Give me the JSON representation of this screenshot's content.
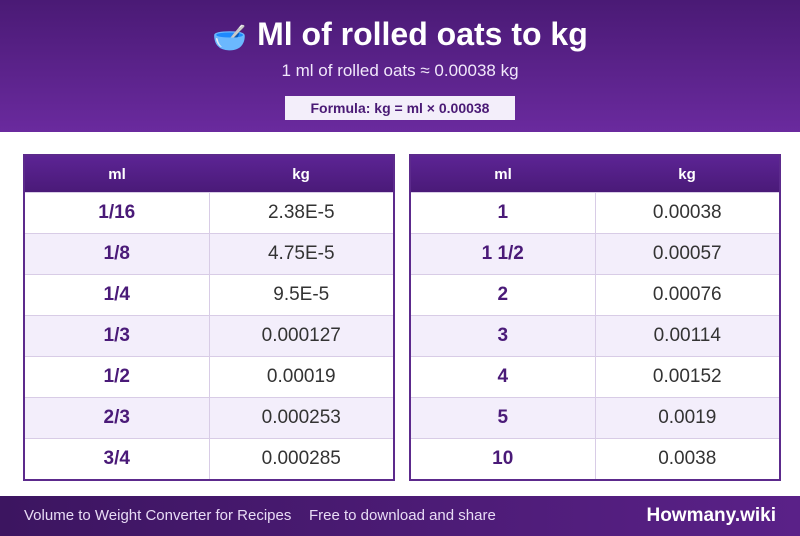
{
  "header": {
    "icon": "bowl-with-spoon",
    "title": "Ml of rolled oats to kg",
    "subtitle": "1 ml of rolled oats ≈ 0.00038 kg",
    "formula": "Formula: kg = ml × 0.00038"
  },
  "tables": [
    {
      "col1": "ml",
      "col2": "kg",
      "rows": [
        {
          "ml": "1/16",
          "kg": "2.38E-5"
        },
        {
          "ml": "1/8",
          "kg": "4.75E-5"
        },
        {
          "ml": "1/4",
          "kg": "9.5E-5"
        },
        {
          "ml": "1/3",
          "kg": "0.000127"
        },
        {
          "ml": "1/2",
          "kg": "0.00019"
        },
        {
          "ml": "2/3",
          "kg": "0.000253"
        },
        {
          "ml": "3/4",
          "kg": "0.000285"
        }
      ]
    },
    {
      "col1": "ml",
      "col2": "kg",
      "rows": [
        {
          "ml": "1",
          "kg": "0.00038"
        },
        {
          "ml": "1 1/2",
          "kg": "0.00057"
        },
        {
          "ml": "2",
          "kg": "0.00076"
        },
        {
          "ml": "3",
          "kg": "0.00114"
        },
        {
          "ml": "4",
          "kg": "0.00152"
        },
        {
          "ml": "5",
          "kg": "0.0019"
        },
        {
          "ml": "10",
          "kg": "0.0038"
        }
      ]
    }
  ],
  "footer": {
    "left": "Volume to Weight Converter for Recipes",
    "middle": "Free to download and share",
    "brand": "Howmany.wiki"
  }
}
